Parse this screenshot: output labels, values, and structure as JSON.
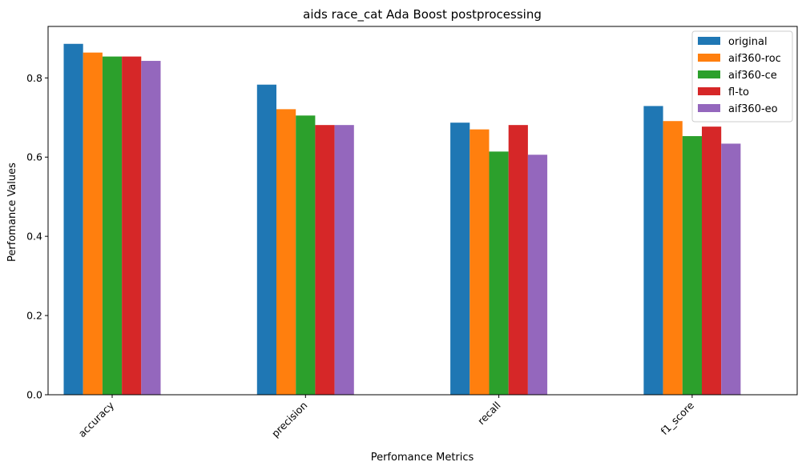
{
  "chart_data": {
    "type": "bar",
    "title": "aids race_cat Ada Boost postprocessing",
    "xlabel": "Perfomance Metrics",
    "ylabel": "Perfomance Values",
    "categories": [
      "accuracy",
      "precision",
      "recall",
      "f1_score"
    ],
    "series": [
      {
        "name": "original",
        "color": "#1f77b4",
        "values": [
          0.886,
          0.783,
          0.687,
          0.729
        ]
      },
      {
        "name": "aif360-roc",
        "color": "#ff7f0e",
        "values": [
          0.864,
          0.721,
          0.67,
          0.691
        ]
      },
      {
        "name": "aif360-ce",
        "color": "#2ca02c",
        "values": [
          0.854,
          0.705,
          0.614,
          0.653
        ]
      },
      {
        "name": "fl-to",
        "color": "#d62728",
        "values": [
          0.854,
          0.681,
          0.681,
          0.677
        ]
      },
      {
        "name": "aif360-eo",
        "color": "#9467bd",
        "values": [
          0.843,
          0.681,
          0.606,
          0.634
        ]
      }
    ],
    "ylim": [
      0,
      0.93
    ],
    "yticks": [
      "0.0",
      "0.2",
      "0.4",
      "0.6",
      "0.8"
    ],
    "legend_position": "top-right",
    "grid": false
  }
}
